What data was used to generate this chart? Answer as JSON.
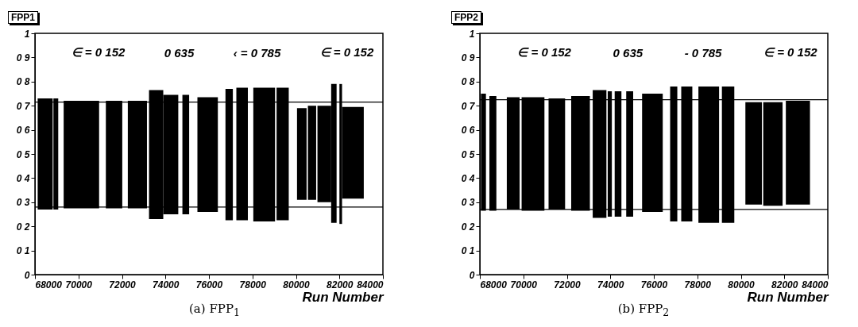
{
  "chart_data": [
    {
      "type": "histogram",
      "title": "FPP1",
      "xlabel": "Run Number",
      "bins": [
        68125,
        68815,
        68850,
        69070,
        69320,
        70950,
        71260,
        72015,
        72270,
        73150,
        73245,
        73900,
        74590,
        74780,
        75090,
        75470,
        76410,
        76760,
        77100,
        77260,
        77790,
        78040,
        79040,
        79110,
        79670,
        80050,
        80490,
        80550,
        80930,
        80990,
        81620,
        81870,
        82000,
        82120,
        83120
      ],
      "values": [
        0.46,
        null,
        0.46,
        null,
        0.445,
        null,
        0.445,
        null,
        0.445,
        null,
        0.535,
        0.495,
        null,
        0.495,
        null,
        0.475,
        null,
        0.545,
        null,
        0.55,
        null,
        0.555,
        null,
        0.55,
        null,
        0.38,
        null,
        0.39,
        null,
        0.4,
        0.575,
        null,
        0.58,
        0.38
      ],
      "base": [
        0.27,
        null,
        0.27,
        null,
        0.275,
        null,
        0.275,
        null,
        0.275,
        null,
        0.23,
        0.25,
        null,
        0.25,
        null,
        0.26,
        null,
        0.225,
        null,
        0.225,
        null,
        0.22,
        null,
        0.225,
        null,
        0.31,
        null,
        0.31,
        null,
        0.3,
        0.215,
        null,
        0.21,
        0.315
      ],
      "color": "#000000",
      "ref_lines": [
        {
          "axis": "y",
          "value": 0.715
        },
        {
          "axis": "y",
          "value": 0.28
        }
      ],
      "xlim": [
        68000,
        84000
      ],
      "xticks": [
        68000,
        70000,
        72000,
        74000,
        76000,
        78000,
        80000,
        82000,
        84000
      ],
      "ylim": [
        0,
        1
      ],
      "yticks": [
        {
          "value": 0,
          "label": "0"
        },
        {
          "value": 0.1,
          "label": "0 1"
        },
        {
          "value": 0.2,
          "label": "0 2"
        },
        {
          "value": 0.3,
          "label": "0 3"
        },
        {
          "value": 0.4,
          "label": "0 4"
        },
        {
          "value": 0.5,
          "label": "0 5"
        },
        {
          "value": 0.6,
          "label": "0 6"
        },
        {
          "value": 0.7,
          "label": "0 7"
        },
        {
          "value": 0.8,
          "label": "0 8"
        },
        {
          "value": 0.9,
          "label": "0 9"
        },
        {
          "value": 1,
          "label": "1"
        }
      ],
      "grid": false,
      "subtitle": "(a) FPP$_{1}$",
      "annotations": [
        "∈ = 0 152",
        "0 635",
        "‹ = 0 785",
        "∈ = 0 152"
      ]
    },
    {
      "type": "histogram",
      "title": "FPP2",
      "xlabel": "Run Number",
      "bins": [
        68050,
        68280,
        68440,
        68760,
        69240,
        69830,
        69920,
        70970,
        71160,
        71920,
        72200,
        73060,
        73190,
        73820,
        73880,
        74070,
        74200,
        74510,
        74730,
        75050,
        75460,
        76410,
        76750,
        77080,
        77260,
        77770,
        78050,
        79000,
        79130,
        79700,
        80210,
        80970,
        81030,
        81920,
        82070,
        83180
      ],
      "values": [
        0.485,
        null,
        0.475,
        null,
        0.465,
        null,
        0.47,
        null,
        0.46,
        null,
        0.475,
        null,
        0.53,
        null,
        0.52,
        null,
        0.52,
        null,
        0.52,
        null,
        0.49,
        null,
        0.56,
        null,
        0.56,
        null,
        0.565,
        null,
        0.565,
        null,
        0.425,
        null,
        0.43,
        null,
        0.43
      ],
      "base": [
        0.265,
        null,
        0.265,
        null,
        0.27,
        null,
        0.265,
        null,
        0.27,
        null,
        0.265,
        null,
        0.235,
        null,
        0.24,
        null,
        0.24,
        null,
        0.24,
        null,
        0.26,
        null,
        0.22,
        null,
        0.22,
        null,
        0.215,
        null,
        0.215,
        null,
        0.29,
        null,
        0.285,
        null,
        0.29
      ],
      "color": "#000000",
      "ref_lines": [
        {
          "axis": "y",
          "value": 0.725
        },
        {
          "axis": "y",
          "value": 0.27
        }
      ],
      "xlim": [
        68000,
        84000
      ],
      "xticks": [
        68000,
        70000,
        72000,
        74000,
        76000,
        78000,
        80000,
        82000,
        84000
      ],
      "ylim": [
        0,
        1
      ],
      "yticks": [
        {
          "value": 0,
          "label": "0"
        },
        {
          "value": 0.1,
          "label": "0 1"
        },
        {
          "value": 0.2,
          "label": "0 2"
        },
        {
          "value": 0.3,
          "label": "0 3"
        },
        {
          "value": 0.4,
          "label": "0 4"
        },
        {
          "value": 0.5,
          "label": "0 5"
        },
        {
          "value": 0.6,
          "label": "0 6"
        },
        {
          "value": 0.7,
          "label": "0 7"
        },
        {
          "value": 0.8,
          "label": "0 8"
        },
        {
          "value": 0.9,
          "label": "0 9"
        },
        {
          "value": 1,
          "label": "1"
        }
      ],
      "grid": false,
      "subtitle": "(b) FPP$_{2}$",
      "annotations": [
        "∈ = 0 152",
        "0 635",
        "- 0 785",
        "∈ = 0 152"
      ]
    }
  ]
}
